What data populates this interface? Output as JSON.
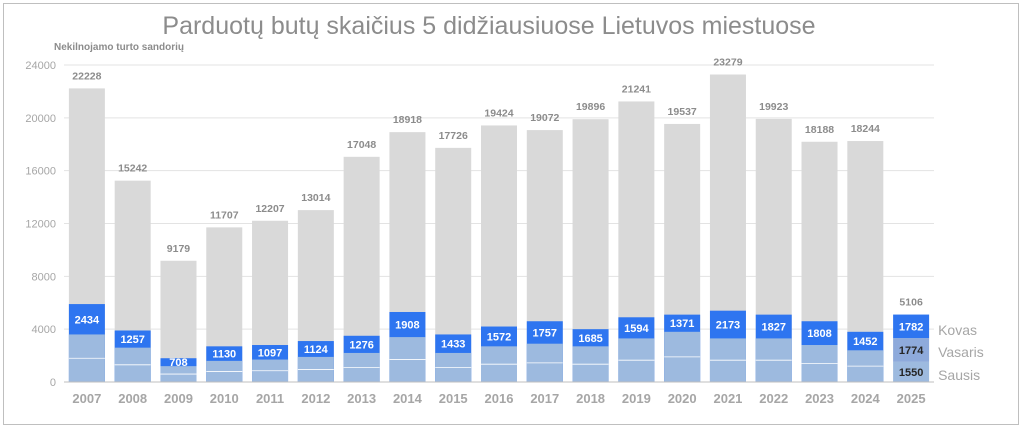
{
  "chart_data": {
    "type": "bar",
    "title": "Parduotų butų skaičius 5 didžiausiuose Lietuvos miestuose",
    "ylabel": "Nekilnojamo turto sandorių",
    "ylim": [
      0,
      24000
    ],
    "yticks": [
      0,
      4000,
      8000,
      12000,
      16000,
      20000,
      24000
    ],
    "grid": true,
    "categories": [
      "2007",
      "2008",
      "2009",
      "2010",
      "2011",
      "2012",
      "2013",
      "2014",
      "2015",
      "2016",
      "2017",
      "2018",
      "2019",
      "2020",
      "2021",
      "2022",
      "2023",
      "2024",
      "2025"
    ],
    "totals": [
      22228,
      15242,
      9179,
      11707,
      12207,
      13014,
      17048,
      18918,
      17726,
      19424,
      19072,
      19896,
      21241,
      19537,
      23279,
      19923,
      18188,
      18244,
      5106
    ],
    "q1_totals": [
      2434,
      1257,
      708,
      1130,
      1097,
      1124,
      1276,
      1908,
      1433,
      1572,
      1757,
      1685,
      1594,
      1371,
      2173,
      1827,
      1808,
      1452,
      1782
    ],
    "q1_displays": [
      5900,
      3900,
      1800,
      2700,
      2800,
      3100,
      3500,
      5300,
      3600,
      4200,
      4600,
      4000,
      4900,
      5100,
      5400,
      5100,
      4600,
      3800,
      5106
    ],
    "jan_feb_approx": [
      3600,
      2600,
      1200,
      1600,
      1700,
      1900,
      2200,
      3400,
      2200,
      2700,
      2900,
      2700,
      3300,
      3800,
      3300,
      3300,
      2800,
      2400
    ],
    "series_2025": [
      {
        "name": "Sausis",
        "value": 1550
      },
      {
        "name": "Vasaris",
        "value": 1774
      },
      {
        "name": "Kovas",
        "value": 1782
      }
    ],
    "legend": [
      "Kovas",
      "Vasaris",
      "Sausis"
    ],
    "colors": {
      "year_bar": "#d9d9d9",
      "march": "#2e75f0",
      "feb": "#8eaadb",
      "jan": "#9dbadf",
      "segment_line": "#ffffff"
    }
  }
}
